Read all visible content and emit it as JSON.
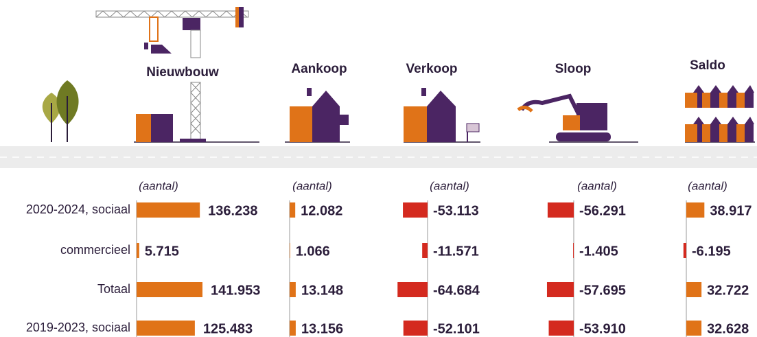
{
  "row_labels": [
    "2020-2024, sociaal",
    "commercieel",
    "Totaal",
    "2019-2023, sociaal"
  ],
  "chart_data": [
    {
      "type": "bar",
      "orientation": "horizontal",
      "title": "Nieuwbouw",
      "subtitle": "(aantal)",
      "color": "#e07318",
      "negative_color": "#d42a1f",
      "values": [
        136238,
        5715,
        141953,
        125483
      ],
      "value_labels": [
        "136.238",
        "5.715",
        "141.953",
        "125.483"
      ]
    },
    {
      "type": "bar",
      "orientation": "horizontal",
      "title": "Aankoop",
      "subtitle": "(aantal)",
      "color": "#e07318",
      "negative_color": "#d42a1f",
      "values": [
        12082,
        1066,
        13148,
        13156
      ],
      "value_labels": [
        "12.082",
        "1.066",
        "13.148",
        "13.156"
      ]
    },
    {
      "type": "bar",
      "orientation": "horizontal",
      "title": "Verkoop",
      "subtitle": "(aantal)",
      "color": "#e07318",
      "negative_color": "#d42a1f",
      "values": [
        -53113,
        -11571,
        -64684,
        -52101
      ],
      "value_labels": [
        "-53.113",
        "-11.571",
        "-64.684",
        "-52.101"
      ]
    },
    {
      "type": "bar",
      "orientation": "horizontal",
      "title": "Sloop",
      "subtitle": "(aantal)",
      "color": "#e07318",
      "negative_color": "#d42a1f",
      "values": [
        -56291,
        -1405,
        -57695,
        -53910
      ],
      "value_labels": [
        "-56.291",
        "-1.405",
        "-57.695",
        "-53.910"
      ]
    },
    {
      "type": "bar",
      "orientation": "horizontal",
      "title": "Saldo",
      "subtitle": "(aantal)",
      "color": "#e07318",
      "negative_color": "#d42a1f",
      "values": [
        38917,
        -6195,
        32722,
        32628
      ],
      "value_labels": [
        "38.917",
        "-6.195",
        "32.722",
        "32.628"
      ]
    }
  ]
}
